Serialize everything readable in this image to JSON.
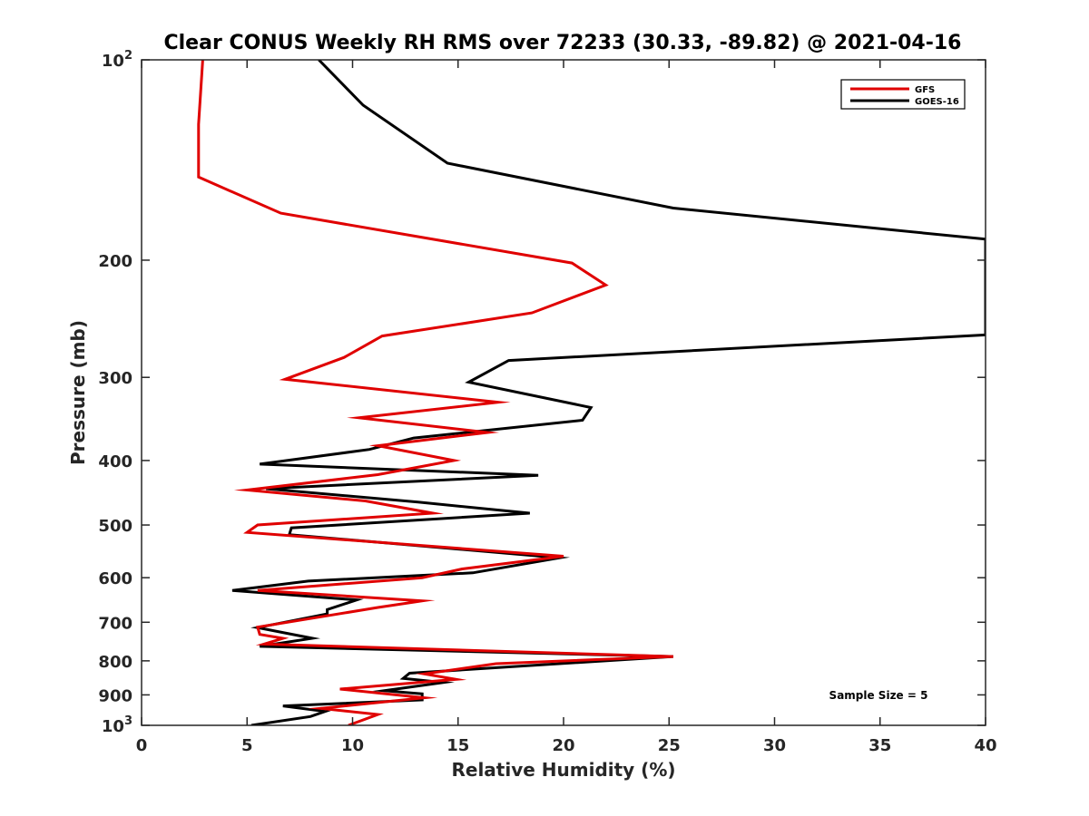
{
  "chart_data": {
    "type": "line",
    "title": "Clear CONUS Weekly RH RMS over 72233 (30.33, -89.82) @ 2021-04-16",
    "xlabel": "Relative Humidity (%)",
    "ylabel": "Pressure (mb)",
    "xlim": [
      0,
      40
    ],
    "ylim": [
      100,
      1000
    ],
    "y_scale": "log",
    "y_reversed": true,
    "x_ticks": [
      "0",
      "5",
      "10",
      "15",
      "20",
      "25",
      "30",
      "35",
      "40"
    ],
    "y_ticks": [
      {
        "value": 100,
        "base": "10",
        "exp": "2"
      },
      {
        "value": 200,
        "label": "200"
      },
      {
        "value": 300,
        "label": "300"
      },
      {
        "value": 400,
        "label": "400"
      },
      {
        "value": 500,
        "label": "500"
      },
      {
        "value": 600,
        "label": "600"
      },
      {
        "value": 700,
        "label": "700"
      },
      {
        "value": 800,
        "label": "800"
      },
      {
        "value": 900,
        "label": "900"
      },
      {
        "value": 1000,
        "base": "10",
        "exp": "3"
      }
    ],
    "legend_position": "top-right",
    "grid": false,
    "annotation": "Sample Size = 5",
    "series": [
      {
        "name": "GFS",
        "color": "#e00000",
        "points": [
          [
            2.9,
            100
          ],
          [
            2.7,
            125
          ],
          [
            2.7,
            150
          ],
          [
            6.6,
            170
          ],
          [
            20.4,
            202
          ],
          [
            22.0,
            218
          ],
          [
            18.5,
            240
          ],
          [
            11.4,
            260
          ],
          [
            9.6,
            280
          ],
          [
            6.8,
            302
          ],
          [
            16.9,
            327
          ],
          [
            10.3,
            345
          ],
          [
            16.4,
            363
          ],
          [
            11.2,
            380
          ],
          [
            14.8,
            400
          ],
          [
            11.2,
            420
          ],
          [
            5.0,
            443
          ],
          [
            10.6,
            460
          ],
          [
            13.8,
            480
          ],
          [
            5.5,
            500
          ],
          [
            5.0,
            513
          ],
          [
            20.0,
            557
          ],
          [
            15.2,
            582
          ],
          [
            13.3,
            600
          ],
          [
            5.5,
            627
          ],
          [
            13.3,
            650
          ],
          [
            11.2,
            665
          ],
          [
            5.5,
            712
          ],
          [
            5.6,
            730
          ],
          [
            6.7,
            740
          ],
          [
            5.8,
            755
          ],
          [
            25.2,
            788
          ],
          [
            16.8,
            808
          ],
          [
            13.4,
            837
          ],
          [
            14.9,
            853
          ],
          [
            9.4,
            882
          ],
          [
            13.4,
            909
          ],
          [
            8.5,
            943
          ],
          [
            11.2,
            963
          ],
          [
            9.8,
            1000
          ]
        ]
      },
      {
        "name": "GOES-16",
        "color": "#000000",
        "points": [
          [
            8.4,
            100
          ],
          [
            10.5,
            117
          ],
          [
            14.5,
            143
          ],
          [
            25.2,
            167
          ],
          [
            40,
            186
          ],
          [
            40,
            259
          ],
          [
            17.4,
            283
          ],
          [
            15.5,
            305
          ],
          [
            21.3,
            333
          ],
          [
            20.9,
            348
          ],
          [
            12.9,
            370
          ],
          [
            10.8,
            385
          ],
          [
            5.6,
            405
          ],
          [
            18.8,
            421
          ],
          [
            5.9,
            441
          ],
          [
            13.1,
            462
          ],
          [
            18.4,
            480
          ],
          [
            7.1,
            505
          ],
          [
            7.0,
            517
          ],
          [
            19.8,
            560
          ],
          [
            15.7,
            590
          ],
          [
            7.9,
            607
          ],
          [
            4.3,
            627
          ],
          [
            10.2,
            648
          ],
          [
            8.8,
            670
          ],
          [
            8.8,
            680
          ],
          [
            5.5,
            713
          ],
          [
            8.1,
            740
          ],
          [
            5.6,
            761
          ],
          [
            25.2,
            788
          ],
          [
            12.7,
            835
          ],
          [
            12.4,
            850
          ],
          [
            14.3,
            862
          ],
          [
            11.5,
            887
          ],
          [
            13.3,
            897
          ],
          [
            13.3,
            916
          ],
          [
            6.7,
            935
          ],
          [
            8.7,
            953
          ],
          [
            8.0,
            970
          ],
          [
            5.2,
            1000
          ]
        ]
      }
    ]
  }
}
